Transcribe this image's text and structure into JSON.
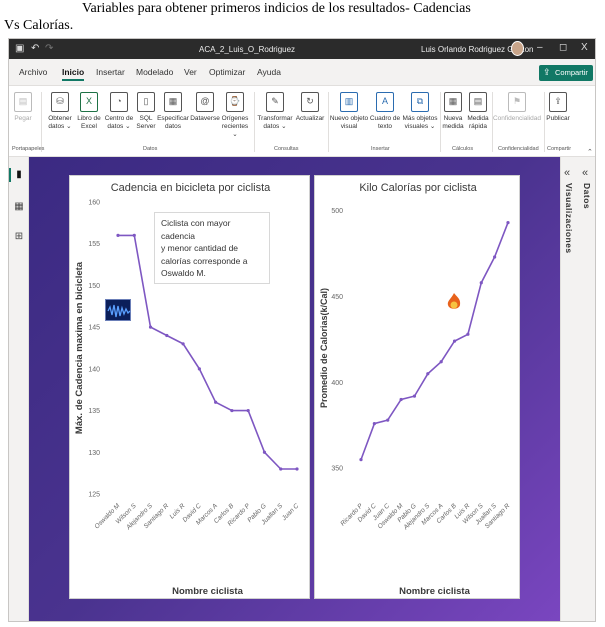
{
  "document": {
    "caption_line1": "Variables para obtener primeros indicios de los resultados- Cadencias",
    "caption_line2": "Vs Calorías."
  },
  "titlebar": {
    "save_icon": "save-icon",
    "undo_icon": "undo-icon",
    "redo_icon": "redo-icon",
    "title": "ACA_2_Luis_O_Rodriguez",
    "user": "Luis Orlando Rodriguez Garzon",
    "minimize": "–",
    "restore": "◻",
    "close": "X"
  },
  "tabs": [
    "Archivo",
    "Inicio",
    "Insertar",
    "Modelado",
    "Ver",
    "Optimizar",
    "Ayuda"
  ],
  "active_tab": "Inicio",
  "share_label": "Compartir",
  "ribbon": {
    "paste": "Pegar",
    "get_data_1": "Obtener",
    "get_data_2": "datos",
    "excel_1": "Libro de",
    "excel_2": "Excel",
    "data_center_1": "Centro de",
    "data_center_2": "datos",
    "sql_1": "SQL",
    "sql_2": "Server",
    "enter_data_1": "Especificar",
    "enter_data_2": "datos",
    "dataverse": "Dataverse",
    "recent_1": "Orígenes",
    "recent_2": "recientes",
    "transform_1": "Transformar",
    "transform_2": "datos",
    "refresh": "Actualizar",
    "new_visual_1": "Nuevo objeto",
    "new_visual_2": "visual",
    "textbox_1": "Cuadro de",
    "textbox_2": "texto",
    "more_visuals_1": "Más objetos",
    "more_visuals_2": "visuales",
    "new_measure_1": "Nueva",
    "new_measure_2": "medida",
    "quick_measure_1": "Medida",
    "quick_measure_2": "rápida",
    "sensitivity": "Confidencialidad",
    "publish": "Publicar",
    "groups": [
      "Portapapeles",
      "Datos",
      "Consultas",
      "Insertar",
      "Cálculos",
      "Confidencialidad",
      "Compartir"
    ]
  },
  "right_panes": {
    "data": "Datos",
    "visualizations": "Visualizaciones"
  },
  "textbox": {
    "line1": "Ciclista con mayor cadencia",
    "line2": "y menor cantidad de",
    "line3": "calorías corresponde a",
    "line4": "Oswaldo M."
  },
  "colors": {
    "line": "#7e57c2",
    "accent": "#117865"
  },
  "chart_data": [
    {
      "type": "line",
      "title": "Cadencia en bicicleta por ciclista",
      "xlabel": "Nombre ciclista",
      "ylabel": "Máx. de Cadencia maxima en bicicleta",
      "categories": [
        "Oswaldo M",
        "Wilson S",
        "Alejandro S",
        "Santiago R",
        "Luis R",
        "David C",
        "Marcos A",
        "Carlos B",
        "Ricardo P",
        "Pablo G",
        "Juallan S",
        "Juan C"
      ],
      "values": [
        156,
        156,
        145,
        144,
        143,
        140,
        136,
        135,
        135,
        130,
        128,
        128
      ],
      "yticks": [
        125,
        130,
        135,
        140,
        145,
        150,
        155,
        160
      ],
      "ylim": [
        125,
        160
      ]
    },
    {
      "type": "line",
      "title": "Kilo Calorías por ciclista",
      "xlabel": "Nombre ciclista",
      "ylabel": "Promedio de Calorias(k/Cal)",
      "categories": [
        "Ricardo P",
        "David C",
        "Juan C",
        "Oswaldo M",
        "Pablo G",
        "Alejandro S",
        "Marcos A",
        "Carlos B",
        "Luis R",
        "Wilson S",
        "Juallan S",
        "Santiago R"
      ],
      "values": [
        355,
        376,
        378,
        390,
        392,
        405,
        412,
        424,
        428,
        458,
        473,
        493
      ],
      "yticks": [
        350,
        400,
        450,
        500
      ],
      "ylim": [
        335,
        505
      ]
    }
  ]
}
